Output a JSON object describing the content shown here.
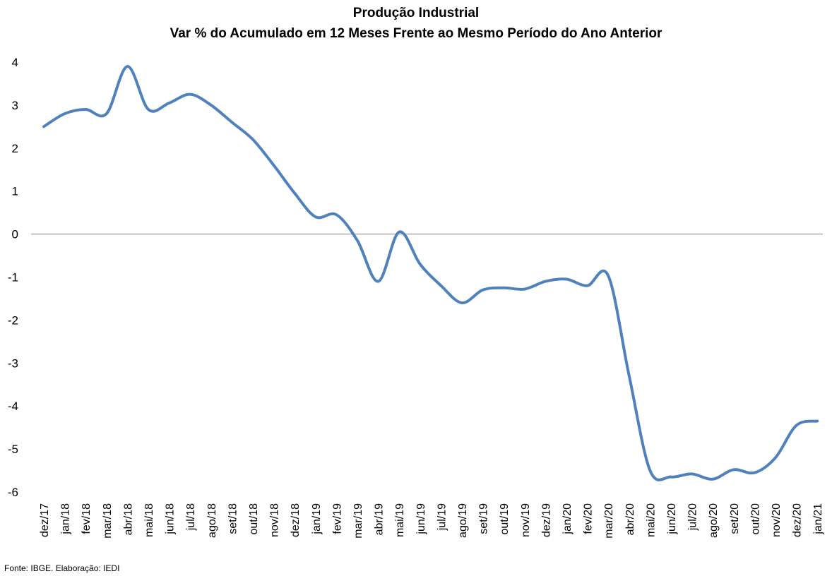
{
  "chart_data": {
    "type": "line",
    "title": [
      "Produção Industrial",
      "Var % do Acumulado em 12 Meses Frente ao Mesmo Período do Ano Anterior"
    ],
    "xlabel": "",
    "ylabel": "",
    "ylim": [
      -6,
      4
    ],
    "yticks": [
      4,
      3,
      2,
      1,
      0,
      -1,
      -2,
      -3,
      -4,
      -5,
      -6
    ],
    "grid": false,
    "legend": "none",
    "line_color": "#4F81BD",
    "categories": [
      "dez/17",
      "jan/18",
      "fev/18",
      "mar/18",
      "abr/18",
      "mai/18",
      "jun/18",
      "jul/18",
      "ago/18",
      "set/18",
      "out/18",
      "nov/18",
      "dez/18",
      "jan/19",
      "fev/19",
      "mar/19",
      "abr/19",
      "mai/19",
      "jun/19",
      "jul/19",
      "ago/19",
      "set/19",
      "out/19",
      "nov/19",
      "dez/19",
      "jan/20",
      "fev/20",
      "mar/20",
      "abr/20",
      "mai/20",
      "jun/20",
      "jul/20",
      "ago/20",
      "set/20",
      "out/20",
      "nov/20",
      "dez/20",
      "jan/21"
    ],
    "series": [
      {
        "values": [
          2.5,
          2.8,
          2.9,
          2.8,
          3.9,
          2.9,
          3.05,
          3.25,
          3.0,
          2.6,
          2.2,
          1.6,
          0.95,
          0.4,
          0.45,
          -0.15,
          -1.1,
          0.05,
          -0.7,
          -1.2,
          -1.6,
          -1.3,
          -1.25,
          -1.28,
          -1.1,
          -1.05,
          -1.2,
          -0.97,
          -3.3,
          -5.5,
          -5.65,
          -5.58,
          -5.7,
          -5.48,
          -5.55,
          -5.2,
          -4.45,
          -4.35
        ]
      }
    ]
  },
  "footer": {
    "source": "Fonte: IBGE. Elaboração: IEDI"
  }
}
